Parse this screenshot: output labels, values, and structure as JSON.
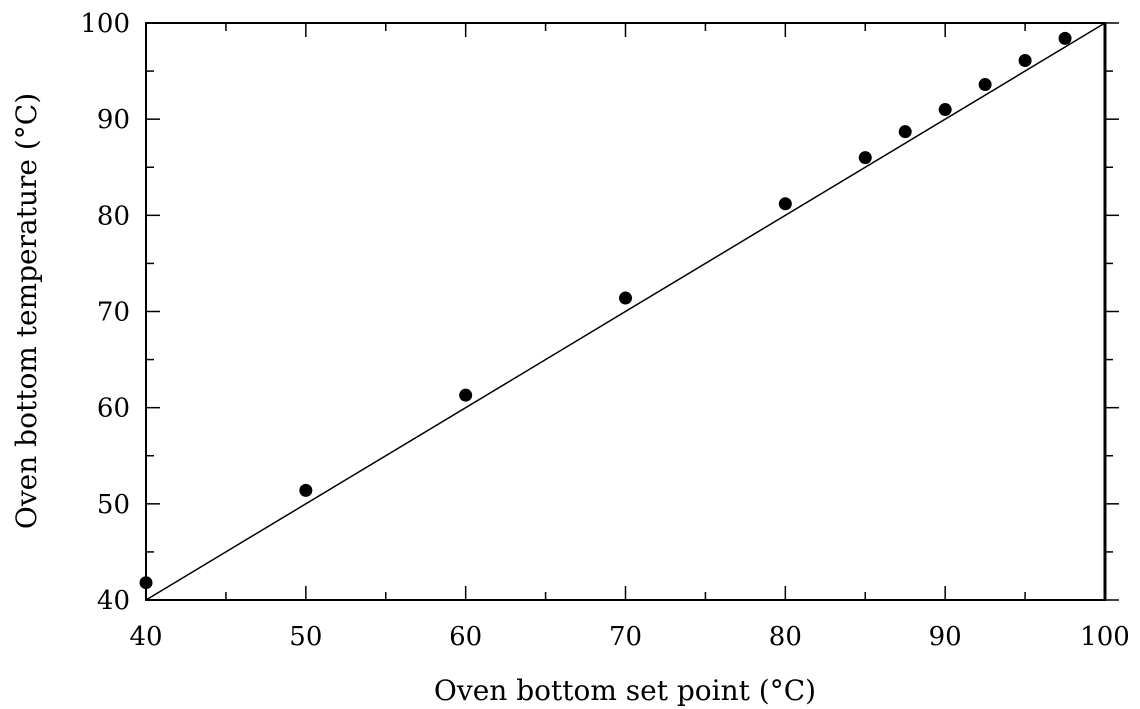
{
  "chart_data": {
    "type": "scatter",
    "xlabel": "Oven bottom set point (°C)",
    "ylabel": "Oven bottom temperature (°C)",
    "xlim": [
      40,
      100
    ],
    "ylim": [
      40,
      100
    ],
    "x_ticks_major": [
      40,
      50,
      60,
      70,
      80,
      90,
      100
    ],
    "y_ticks_major": [
      40,
      50,
      60,
      70,
      80,
      90,
      100
    ],
    "x_tick_labels": [
      "40",
      "50",
      "60",
      "70",
      "80",
      "90",
      "100"
    ],
    "y_tick_labels": [
      "40",
      "50",
      "60",
      "70",
      "80",
      "90",
      "100"
    ],
    "minor_step": 5,
    "grid": false,
    "series": [
      {
        "marker_color": "#000000",
        "x": [
          40,
          50,
          60,
          70,
          80,
          85,
          87.5,
          90,
          92.5,
          95,
          97.5
        ],
        "y": [
          41.8,
          51.4,
          61.3,
          71.4,
          81.2,
          86.0,
          88.7,
          91.0,
          93.6,
          96.1,
          98.4
        ]
      }
    ],
    "reference_line": {
      "x": [
        40,
        100
      ],
      "y": [
        40,
        100
      ],
      "color": "#000000"
    }
  }
}
